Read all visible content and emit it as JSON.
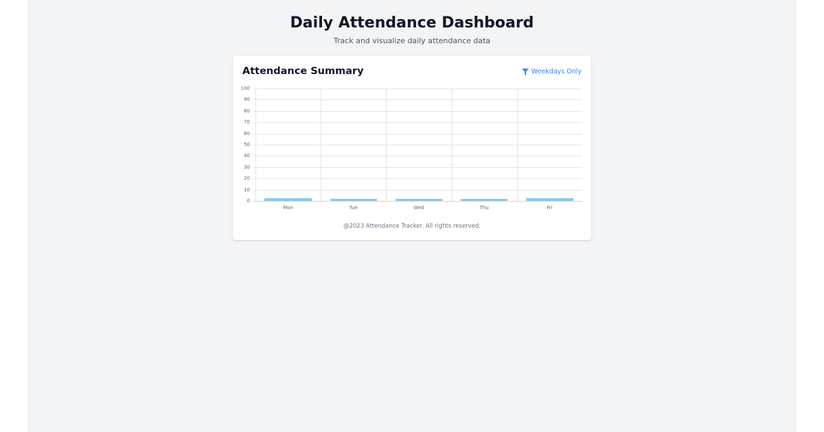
{
  "header": {
    "title": "Daily Attendance Dashboard",
    "subtitle": "Track and visualize daily attendance data"
  },
  "card": {
    "title": "Attendance Summary",
    "filter_label": "Weekdays Only",
    "filter_icon": "filter-icon",
    "footer": "@2023 Attendance Tracker. All rights reserved."
  },
  "colors": {
    "bar": "#8ec8ee",
    "accent": "#3b82f6",
    "background": "#f3f4f6"
  },
  "chart_data": {
    "type": "bar",
    "title": "Attendance Summary",
    "categories": [
      "Mon",
      "Tue",
      "Wed",
      "Thu",
      "Fri"
    ],
    "values": [
      2.5,
      2,
      2,
      2,
      2.5
    ],
    "xlabel": "",
    "ylabel": "",
    "ylim": [
      0,
      100
    ],
    "yticks": [
      0,
      10,
      20,
      30,
      40,
      50,
      60,
      70,
      80,
      90,
      100
    ],
    "grid": true,
    "legend": "none"
  }
}
